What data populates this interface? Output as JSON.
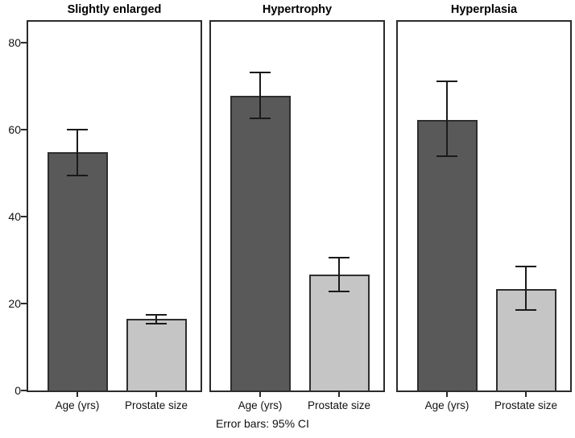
{
  "chart_data": {
    "type": "bar",
    "caption": "Error bars: 95% CI",
    "categories": [
      "Age (yrs)",
      "Prostate size"
    ],
    "yticks": [
      0,
      20,
      40,
      60,
      80
    ],
    "ylim": [
      0,
      84.8
    ],
    "grid": false,
    "legend": "none",
    "panels": [
      {
        "title": "Slightly enlarged",
        "bars": [
          {
            "category": "Age (yrs)",
            "value": 54.8,
            "ci_low": 49.5,
            "ci_high": 59.9
          },
          {
            "category": "Prostate size",
            "value": 16.4,
            "ci_low": 15.4,
            "ci_high": 17.4
          }
        ]
      },
      {
        "title": "Hypertrophy",
        "bars": [
          {
            "category": "Age (yrs)",
            "value": 67.8,
            "ci_low": 62.5,
            "ci_high": 73.1
          },
          {
            "category": "Prostate size",
            "value": 26.6,
            "ci_low": 22.7,
            "ci_high": 30.5
          }
        ]
      },
      {
        "title": "Hyperplasia",
        "bars": [
          {
            "category": "Age (yrs)",
            "value": 62.3,
            "ci_low": 53.8,
            "ci_high": 71.1
          },
          {
            "category": "Prostate size",
            "value": 23.4,
            "ci_low": 18.5,
            "ci_high": 28.5
          }
        ]
      }
    ],
    "colors": {
      "age_bar": "#595959",
      "prostate_bar": "#c5c5c5",
      "bar_border": "#2e2e2e",
      "frame": "#2b2b2b",
      "error_bar": "#1a1a1a",
      "background": "#ffffff"
    }
  }
}
